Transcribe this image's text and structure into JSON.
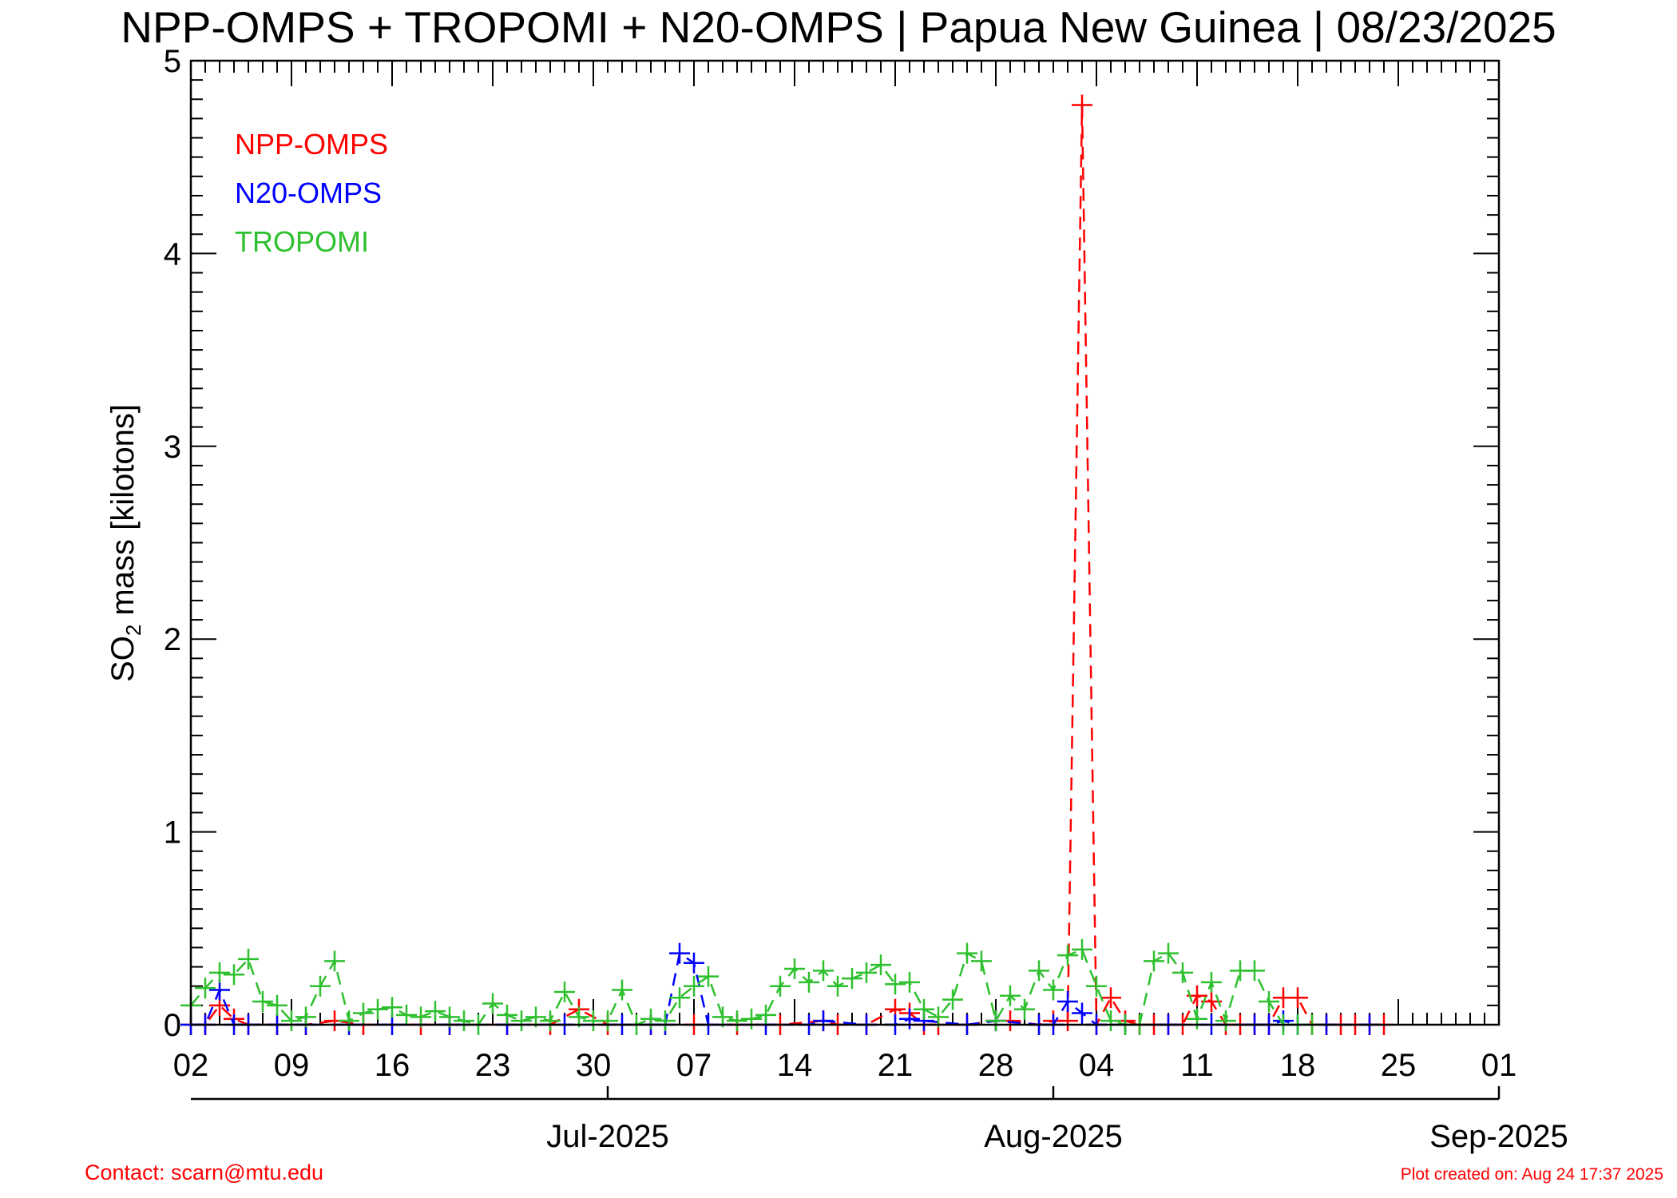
{
  "title": "NPP-OMPS + TROPOMI + N20-OMPS | Papua New Guinea | 08/23/2025",
  "footer": {
    "contact": "Contact: scarn@mtu.edu",
    "created": "Plot created on: Aug 24 17:37 2025"
  },
  "colors": {
    "NPP-OMPS": "#ff0000",
    "N20-OMPS": "#0000ff",
    "TROPOMI": "#2ec02e"
  },
  "chart_data": {
    "type": "line",
    "ylabel": "SO2 mass [kilotons]",
    "ylabel_main": "SO",
    "ylabel_sub": "2",
    "ylabel_rest": " mass [kilotons]",
    "xlim": [
      "2025-06-02",
      "2025-09-01"
    ],
    "ylim": [
      0,
      5
    ],
    "y_ticks": [
      0,
      1,
      2,
      3,
      4,
      5
    ],
    "y_tick_labels": [
      "0",
      "1",
      "2",
      "3",
      "4",
      "5"
    ],
    "x_ticks": [
      "2025-06-02",
      "2025-06-09",
      "2025-06-16",
      "2025-06-23",
      "2025-06-30",
      "2025-07-07",
      "2025-07-14",
      "2025-07-21",
      "2025-07-28",
      "2025-08-04",
      "2025-08-11",
      "2025-08-18",
      "2025-08-25",
      "2025-09-01"
    ],
    "x_tick_labels": [
      "02",
      "09",
      "16",
      "23",
      "30",
      "07",
      "14",
      "21",
      "28",
      "04",
      "11",
      "18",
      "25",
      "01"
    ],
    "month_ticks": [
      "2025-07-01",
      "2025-08-01",
      "2025-09-01"
    ],
    "month_labels": [
      "Jul-2025",
      "Aug-2025",
      "Sep-2025"
    ],
    "legend_placement": "top-left",
    "series": [
      {
        "name": "NPP-OMPS",
        "x": [
          "2025-06-02",
          "2025-06-03",
          "2025-06-04",
          "2025-06-05",
          "2025-06-06",
          "2025-06-08",
          "2025-06-10",
          "2025-06-12",
          "2025-06-14",
          "2025-06-18",
          "2025-06-20",
          "2025-06-24",
          "2025-06-27",
          "2025-06-29",
          "2025-07-01",
          "2025-07-04",
          "2025-07-07",
          "2025-07-10",
          "2025-07-13",
          "2025-07-16",
          "2025-07-17",
          "2025-07-19",
          "2025-07-21",
          "2025-07-22",
          "2025-07-23",
          "2025-07-24",
          "2025-07-26",
          "2025-07-28",
          "2025-07-29",
          "2025-07-31",
          "2025-08-01",
          "2025-08-02",
          "2025-08-03",
          "2025-08-04",
          "2025-08-05",
          "2025-08-06",
          "2025-08-07",
          "2025-08-08",
          "2025-08-09",
          "2025-08-10",
          "2025-08-11",
          "2025-08-12",
          "2025-08-13",
          "2025-08-14",
          "2025-08-15",
          "2025-08-16",
          "2025-08-17",
          "2025-08-18",
          "2025-08-19",
          "2025-08-20",
          "2025-08-21",
          "2025-08-22",
          "2025-08-23",
          "2025-08-24"
        ],
        "y": [
          0,
          0,
          0.1,
          0.03,
          0,
          0,
          0,
          0.02,
          0,
          0,
          0,
          0,
          0,
          0.08,
          0,
          0,
          0,
          0,
          0,
          0.02,
          0,
          0,
          0.08,
          0.06,
          0,
          0,
          0,
          0.02,
          0.02,
          0,
          0.02,
          0.02,
          4.77,
          0,
          0.14,
          0.02,
          0,
          0,
          0,
          0,
          0.15,
          0.12,
          0,
          0,
          0,
          0,
          0.14,
          0.14,
          0,
          0,
          0,
          0,
          0,
          0
        ]
      },
      {
        "name": "N20-OMPS",
        "x": [
          "2025-06-02",
          "2025-06-03",
          "2025-06-04",
          "2025-06-05",
          "2025-06-06",
          "2025-06-08",
          "2025-06-10",
          "2025-06-13",
          "2025-06-16",
          "2025-06-20",
          "2025-06-24",
          "2025-06-28",
          "2025-07-02",
          "2025-07-04",
          "2025-07-05",
          "2025-07-06",
          "2025-07-07",
          "2025-07-08",
          "2025-07-12",
          "2025-07-15",
          "2025-07-16",
          "2025-07-19",
          "2025-07-21",
          "2025-07-22",
          "2025-07-23",
          "2025-07-26",
          "2025-07-28",
          "2025-07-31",
          "2025-08-01",
          "2025-08-02",
          "2025-08-03",
          "2025-08-04",
          "2025-08-06",
          "2025-08-09",
          "2025-08-12",
          "2025-08-15",
          "2025-08-16",
          "2025-08-17",
          "2025-08-18",
          "2025-08-20",
          "2025-08-23"
        ],
        "y": [
          0,
          0,
          0.18,
          0,
          0,
          0,
          0,
          0,
          0,
          0,
          0,
          0,
          0,
          0,
          0,
          0.37,
          0.32,
          0,
          0,
          0,
          0.02,
          0,
          0,
          0.03,
          0.02,
          0,
          0.02,
          0,
          0,
          0.12,
          0.06,
          0,
          0,
          0,
          0,
          0,
          0,
          0.02,
          0,
          0,
          0
        ]
      },
      {
        "name": "TROPOMI",
        "x": [
          "2025-06-02",
          "2025-06-03",
          "2025-06-04",
          "2025-06-05",
          "2025-06-06",
          "2025-06-07",
          "2025-06-08",
          "2025-06-09",
          "2025-06-10",
          "2025-06-11",
          "2025-06-12",
          "2025-06-13",
          "2025-06-14",
          "2025-06-15",
          "2025-06-16",
          "2025-06-17",
          "2025-06-18",
          "2025-06-19",
          "2025-06-20",
          "2025-06-21",
          "2025-06-22",
          "2025-06-23",
          "2025-06-24",
          "2025-06-25",
          "2025-06-26",
          "2025-06-27",
          "2025-06-28",
          "2025-06-29",
          "2025-06-30",
          "2025-07-01",
          "2025-07-02",
          "2025-07-03",
          "2025-07-04",
          "2025-07-05",
          "2025-07-06",
          "2025-07-07",
          "2025-07-08",
          "2025-07-09",
          "2025-07-10",
          "2025-07-11",
          "2025-07-12",
          "2025-07-13",
          "2025-07-14",
          "2025-07-15",
          "2025-07-16",
          "2025-07-17",
          "2025-07-18",
          "2025-07-19",
          "2025-07-20",
          "2025-07-21",
          "2025-07-22",
          "2025-07-23",
          "2025-07-24",
          "2025-07-25",
          "2025-07-26",
          "2025-07-27",
          "2025-07-28",
          "2025-07-29",
          "2025-07-30",
          "2025-07-31",
          "2025-08-01",
          "2025-08-02",
          "2025-08-03",
          "2025-08-04",
          "2025-08-05",
          "2025-08-06",
          "2025-08-07",
          "2025-08-08",
          "2025-08-09",
          "2025-08-10",
          "2025-08-11",
          "2025-08-12",
          "2025-08-13",
          "2025-08-14",
          "2025-08-15",
          "2025-08-16",
          "2025-08-17",
          "2025-08-18",
          "2025-08-19"
        ],
        "y": [
          0.1,
          0.19,
          0.27,
          0.26,
          0.34,
          0.12,
          0.1,
          0.02,
          0.04,
          0.2,
          0.33,
          0.02,
          0.06,
          0.08,
          0.09,
          0.05,
          0.04,
          0.07,
          0.04,
          0.02,
          0,
          0.11,
          0.05,
          0.02,
          0.04,
          0.02,
          0.17,
          0.04,
          0.02,
          0.02,
          0.18,
          0,
          0.03,
          0.02,
          0.14,
          0.2,
          0.25,
          0.04,
          0.02,
          0.03,
          0.05,
          0.2,
          0.29,
          0.22,
          0.28,
          0.2,
          0.24,
          0.27,
          0.31,
          0.21,
          0.22,
          0.08,
          0.04,
          0.13,
          0.37,
          0.33,
          0.02,
          0.15,
          0.08,
          0.28,
          0.18,
          0.36,
          0.39,
          0.2,
          0.02,
          0,
          0,
          0.33,
          0.37,
          0.27,
          0.03,
          0.22,
          0.02,
          0.28,
          0.28,
          0.12,
          0,
          0,
          0
        ]
      }
    ]
  }
}
